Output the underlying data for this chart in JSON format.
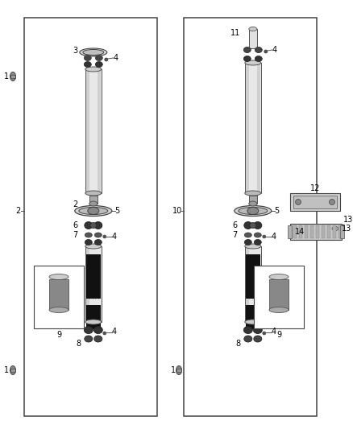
{
  "bg_color": "#ffffff",
  "line_color": "#555555",
  "figsize": [
    4.38,
    5.33
  ],
  "dpi": 100,
  "label_fontsize": 7.0
}
